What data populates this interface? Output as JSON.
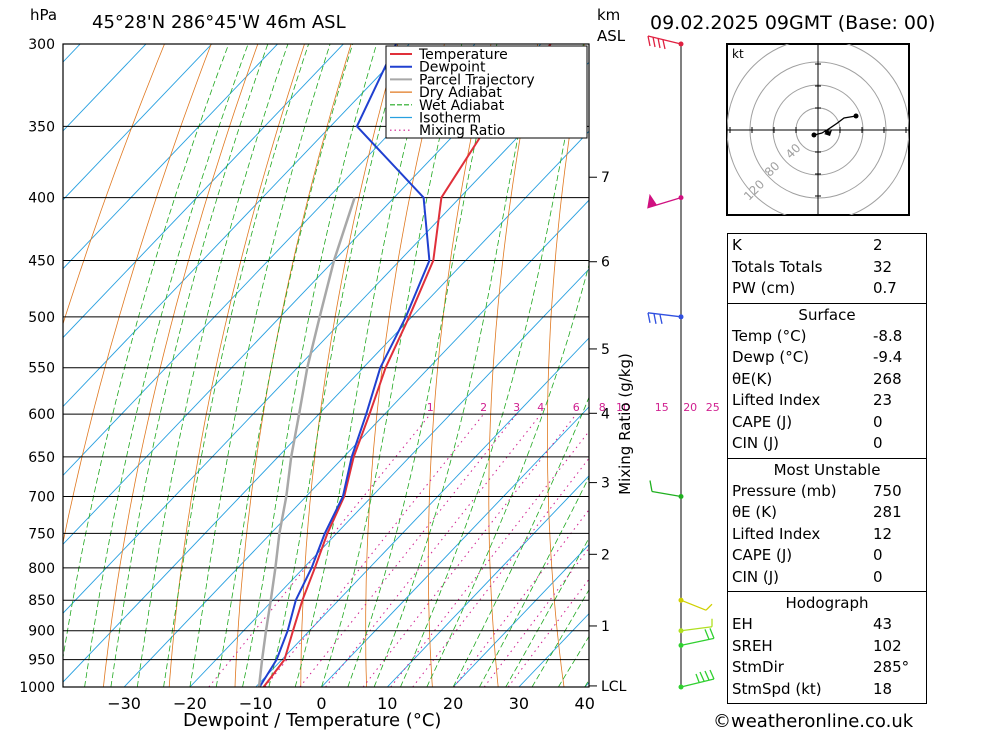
{
  "header": {
    "unit_left": "hPa",
    "location": "45°28'N 286°45'W 46m ASL",
    "unit_km": "km",
    "unit_asl": "ASL",
    "datetime": "09.02.2025 09GMT (Base: 00)"
  },
  "chart_data": {
    "type": "line",
    "xlabel": "Dewpoint / Temperature (°C)",
    "ylabel": "Mixing Ratio (g/kg)",
    "xlim": [
      -40,
      40
    ],
    "ylim_hpa": [
      1000,
      300
    ],
    "x_ticks": [
      -30,
      -20,
      -10,
      0,
      10,
      20,
      30,
      40
    ],
    "pressure_levels": [
      300,
      350,
      400,
      450,
      500,
      550,
      600,
      650,
      700,
      750,
      800,
      850,
      900,
      950,
      1000
    ],
    "km_ticks": [
      {
        "label": "7",
        "hpa": 385
      },
      {
        "label": "6",
        "hpa": 451
      },
      {
        "label": "5",
        "hpa": 531
      },
      {
        "label": "4",
        "hpa": 599
      },
      {
        "label": "3",
        "hpa": 682
      },
      {
        "label": "2",
        "hpa": 780
      },
      {
        "label": "1",
        "hpa": 892
      },
      {
        "label": "LCL",
        "hpa": 998
      }
    ],
    "mixing_ratio_labels": [
      "1",
      "2",
      "3",
      "4",
      "6",
      "8",
      "10",
      "15",
      "20",
      "25"
    ],
    "legend": [
      "Temperature",
      "Dewpoint",
      "Parcel Trajectory",
      "Dry Adiabat",
      "Wet Adiabat",
      "Isotherm",
      "Mixing Ratio"
    ],
    "colors": {
      "temperature": "#e0303a",
      "dewpoint": "#2040d0",
      "parcel": "#a8a8a8",
      "dry_adiabat": "#e07820",
      "wet_adiabat": "#20a820",
      "isotherm": "#28a0e0",
      "mixing_ratio": "#d02090"
    },
    "series": [
      {
        "name": "Temperature",
        "points": [
          [
            1000,
            -8.8
          ],
          [
            950,
            -9.6
          ],
          [
            900,
            -12.5
          ],
          [
            850,
            -15.5
          ],
          [
            800,
            -18.3
          ],
          [
            750,
            -21.4
          ],
          [
            700,
            -24.2
          ],
          [
            650,
            -28.5
          ],
          [
            600,
            -32.3
          ],
          [
            550,
            -36.6
          ],
          [
            500,
            -40.4
          ],
          [
            450,
            -44.9
          ],
          [
            400,
            -52.8
          ],
          [
            350,
            -56.2
          ],
          [
            300,
            -58.5
          ]
        ]
      },
      {
        "name": "Dewpoint",
        "points": [
          [
            1000,
            -9.4
          ],
          [
            950,
            -10.8
          ],
          [
            900,
            -13.3
          ],
          [
            850,
            -16.5
          ],
          [
            800,
            -18.8
          ],
          [
            750,
            -21.8
          ],
          [
            700,
            -24.4
          ],
          [
            650,
            -28.8
          ],
          [
            600,
            -32.8
          ],
          [
            550,
            -37.4
          ],
          [
            500,
            -40.9
          ],
          [
            450,
            -45.5
          ],
          [
            400,
            -55.5
          ],
          [
            350,
            -76
          ],
          [
            300,
            -82
          ]
        ]
      },
      {
        "name": "Parcel Trajectory",
        "points": [
          [
            1000,
            -9.5
          ],
          [
            950,
            -13.0
          ],
          [
            900,
            -16.6
          ],
          [
            850,
            -20.3
          ],
          [
            800,
            -24.3
          ],
          [
            750,
            -28.7
          ],
          [
            700,
            -33.0
          ],
          [
            650,
            -38.0
          ],
          [
            600,
            -43.0
          ],
          [
            550,
            -48.5
          ],
          [
            500,
            -54.0
          ],
          [
            450,
            -60.0
          ],
          [
            400,
            -66.0
          ]
        ]
      }
    ]
  },
  "wind_barbs": [
    {
      "hpa": 300,
      "color": "#e02040"
    },
    {
      "hpa": 400,
      "color": "#d01080"
    },
    {
      "hpa": 500,
      "color": "#3050e0"
    },
    {
      "hpa": 700,
      "color": "#20b020"
    },
    {
      "hpa": 850,
      "color": "#d0d000"
    },
    {
      "hpa": 900,
      "color": "#b0e020"
    },
    {
      "hpa": 925,
      "color": "#30d030"
    },
    {
      "hpa": 1000,
      "color": "#30d030"
    }
  ],
  "hodograph": {
    "unit": "kt",
    "ring_labels": [
      "40",
      "80",
      "120"
    ]
  },
  "indices": {
    "top": [
      {
        "label": "K",
        "value": "2"
      },
      {
        "label": "Totals Totals",
        "value": "32"
      },
      {
        "label": "PW (cm)",
        "value": "0.7"
      }
    ],
    "surface_title": "Surface",
    "surface": [
      {
        "label": "Temp (°C)",
        "value": "-8.8"
      },
      {
        "label": "Dewp (°C)",
        "value": "-9.4"
      },
      {
        "label": "θE(K)",
        "value": "268"
      },
      {
        "label": "Lifted Index",
        "value": "23"
      },
      {
        "label": "CAPE (J)",
        "value": "0"
      },
      {
        "label": "CIN (J)",
        "value": "0"
      }
    ],
    "mu_title": "Most Unstable",
    "mu": [
      {
        "label": "Pressure (mb)",
        "value": "750"
      },
      {
        "label": "θE (K)",
        "value": "281"
      },
      {
        "label": "Lifted Index",
        "value": "12"
      },
      {
        "label": "CAPE (J)",
        "value": "0"
      },
      {
        "label": "CIN (J)",
        "value": "0"
      }
    ],
    "hodo_title": "Hodograph",
    "hodo": [
      {
        "label": "EH",
        "value": "43"
      },
      {
        "label": "SREH",
        "value": "102"
      },
      {
        "label": "StmDir",
        "value": "285°"
      },
      {
        "label": "StmSpd (kt)",
        "value": "18"
      }
    ]
  },
  "footer": {
    "copyright": "©weatheronline.co.uk"
  }
}
